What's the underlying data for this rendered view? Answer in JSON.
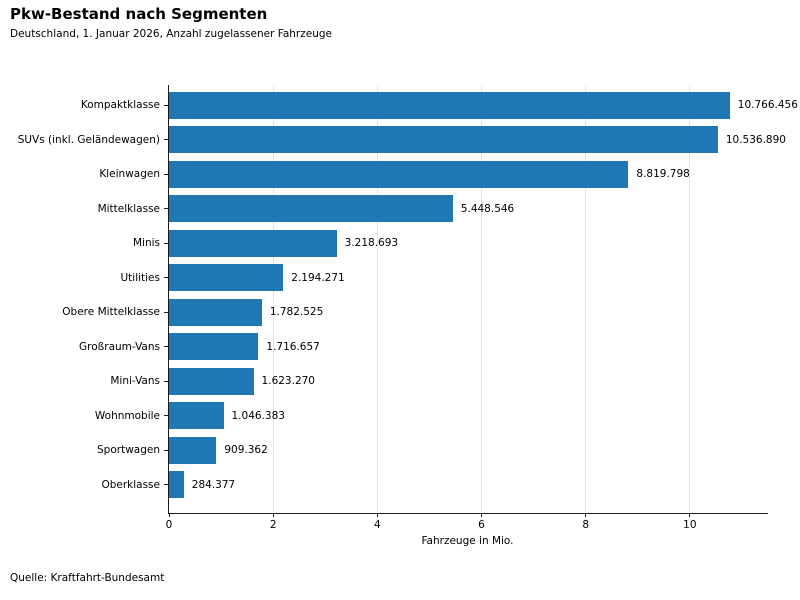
{
  "header": {
    "title": "Pkw-Bestand nach Segmenten",
    "subtitle": "Deutschland, 1. Januar 2026, Anzahl zugelassener Fahrzeuge"
  },
  "footer": {
    "source": "Quelle: Kraftfahrt-Bundesamt"
  },
  "chart_data": {
    "type": "bar",
    "orientation": "horizontal",
    "title": "Pkw-Bestand nach Segmenten",
    "subtitle": "Deutschland, 1. Januar 2026, Anzahl zugelassener Fahrzeuge",
    "categories": [
      "Kompaktklasse",
      "SUVs (inkl. Geländewagen)",
      "Kleinwagen",
      "Mittelklasse",
      "Minis",
      "Utilities",
      "Obere Mittelklasse",
      "Großraum-Vans",
      "Mini-Vans",
      "Wohnmobile",
      "Sportwagen",
      "Oberklasse"
    ],
    "values": [
      10766456,
      10536890,
      8819798,
      5448546,
      3218693,
      2194271,
      1782525,
      1716657,
      1623270,
      1046383,
      909362,
      284377
    ],
    "value_labels": [
      "10.766.456",
      "10.536.890",
      "8.819.798",
      "5.448.546",
      "3.218.693",
      "2.194.271",
      "1.782.525",
      "1.716.657",
      "1.623.270",
      "1.046.383",
      "909.362",
      "284.377"
    ],
    "xlabel": "Fahrzeuge in Mio.",
    "xticks": [
      0,
      2,
      4,
      6,
      8,
      10
    ],
    "xlim": [
      0,
      11.5
    ],
    "unit_divisor": 1000000,
    "grid": "vertical",
    "legend": "none",
    "source": "Quelle: Kraftfahrt-Bundesamt",
    "colors": {
      "bar": "#1f77b4",
      "grid": "#e2e2e2",
      "axis": "#1a1a1a",
      "text": "#000000",
      "background": "#ffffff"
    }
  }
}
